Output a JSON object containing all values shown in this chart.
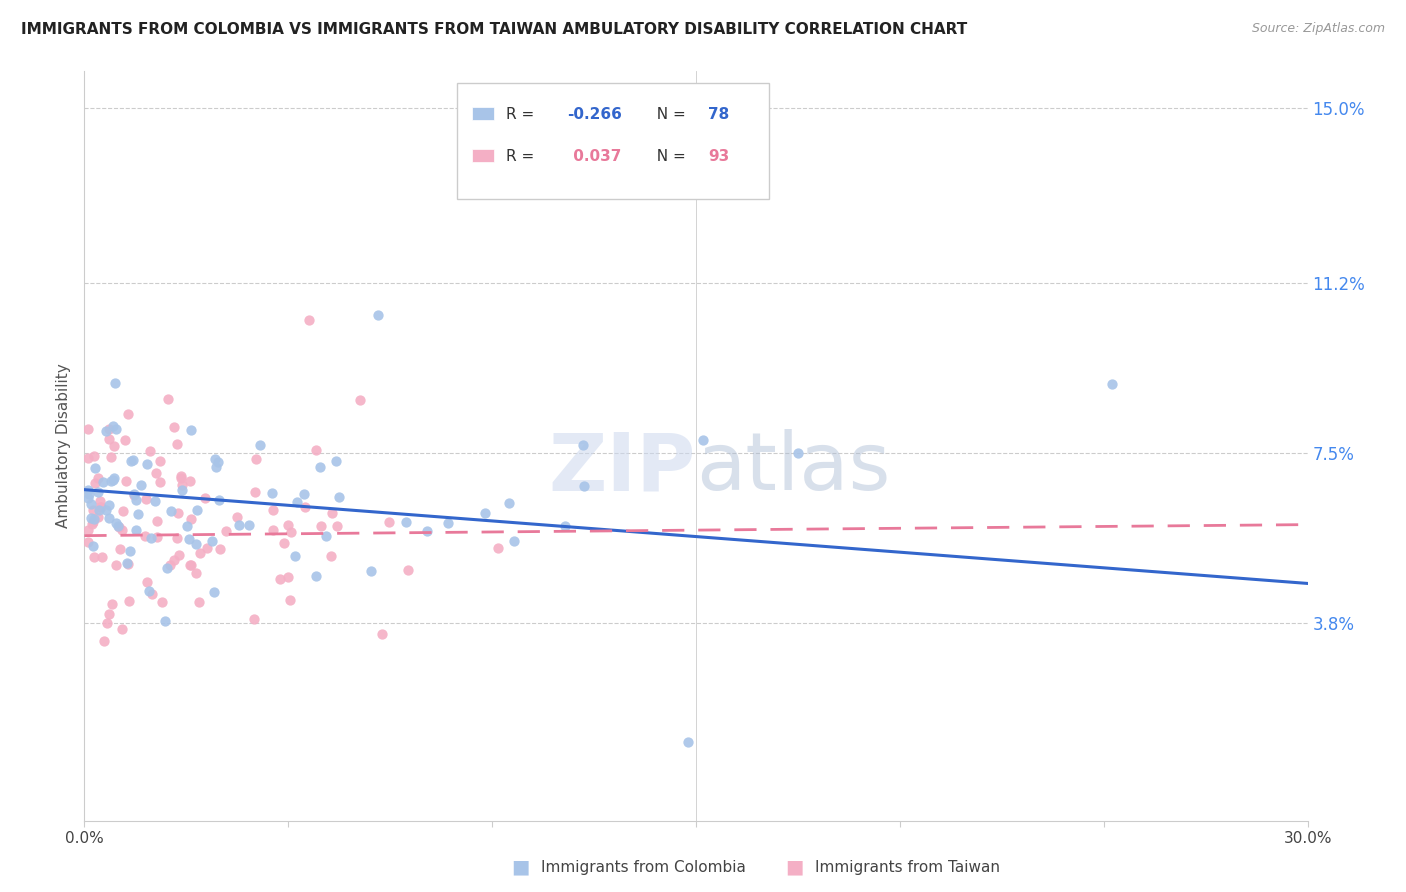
{
  "title": "IMMIGRANTS FROM COLOMBIA VS IMMIGRANTS FROM TAIWAN AMBULATORY DISABILITY CORRELATION CHART",
  "source": "Source: ZipAtlas.com",
  "ylabel": "Ambulatory Disability",
  "xlim": [
    0.0,
    0.3
  ],
  "ylim": [
    -0.005,
    0.158
  ],
  "ytick_vals": [
    0.038,
    0.075,
    0.112,
    0.15
  ],
  "ytick_labels": [
    "3.8%",
    "7.5%",
    "11.2%",
    "15.0%"
  ],
  "xtick_vals": [
    0.0,
    0.05,
    0.1,
    0.15,
    0.2,
    0.25,
    0.3
  ],
  "xtick_labels": [
    "0.0%",
    "",
    "",
    "",
    "",
    "",
    "30.0%"
  ],
  "colombia_color": "#a8c4e8",
  "taiwan_color": "#f4afc5",
  "colombia_line_color": "#3366cc",
  "taiwan_line_color": "#e8799a",
  "colombia_R": -0.266,
  "colombia_N": 78,
  "taiwan_R": 0.037,
  "taiwan_N": 93,
  "watermark": "ZIPatlas",
  "grid_color": "#cccccc",
  "background_color": "#ffffff"
}
